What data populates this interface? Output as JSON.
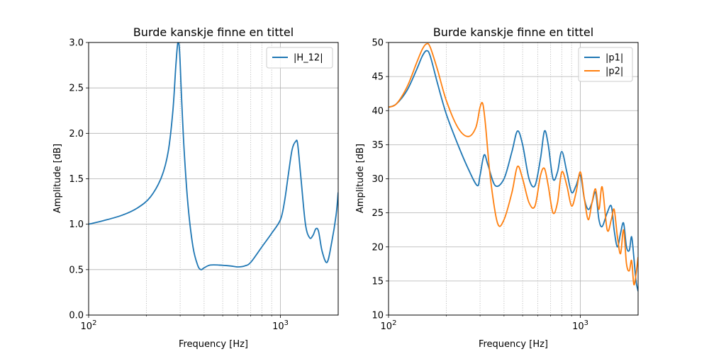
{
  "chart_data": [
    {
      "type": "line",
      "title": "Burde kanskje finne en tittel",
      "xlabel": "Frequency [Hz]",
      "ylabel": "Amplitude [dB]",
      "xscale": "log",
      "xlim": [
        100,
        2000
      ],
      "ylim": [
        0,
        3.0
      ],
      "yticks": [
        0.0,
        0.5,
        1.0,
        1.5,
        2.0,
        2.5,
        3.0
      ],
      "ytick_labels": [
        "0.0",
        "0.5",
        "1.0",
        "1.5",
        "2.0",
        "2.5",
        "3.0"
      ],
      "xticks": [
        100,
        1000
      ],
      "grid": true,
      "legend": "top-right",
      "series": [
        {
          "name": "|H_12|",
          "color": "#1f77b4",
          "x": [
            100,
            120,
            150,
            180,
            210,
            240,
            260,
            275,
            285,
            292,
            298,
            305,
            315,
            330,
            350,
            370,
            385,
            400,
            430,
            480,
            550,
            600,
            650,
            700,
            800,
            900,
            1000,
            1050,
            1100,
            1150,
            1200,
            1230,
            1280,
            1350,
            1420,
            1480,
            1530,
            1580,
            1650,
            1750,
            1850,
            1950,
            2000
          ],
          "y": [
            1.0,
            1.04,
            1.1,
            1.18,
            1.3,
            1.52,
            1.8,
            2.25,
            2.75,
            3.0,
            2.9,
            2.4,
            1.8,
            1.2,
            0.75,
            0.55,
            0.5,
            0.52,
            0.55,
            0.55,
            0.54,
            0.53,
            0.54,
            0.58,
            0.75,
            0.9,
            1.05,
            1.25,
            1.55,
            1.82,
            1.91,
            1.88,
            1.5,
            1.0,
            0.85,
            0.88,
            0.95,
            0.92,
            0.7,
            0.58,
            0.8,
            1.1,
            1.35
          ]
        }
      ]
    },
    {
      "type": "line",
      "title": "Burde kanskje finne en tittel",
      "xlabel": "Frequency [Hz]",
      "ylabel": "Amplitude [dB]",
      "xscale": "log",
      "xlim": [
        100,
        2000
      ],
      "ylim": [
        10,
        50
      ],
      "yticks": [
        10,
        15,
        20,
        25,
        30,
        35,
        40,
        45,
        50
      ],
      "ytick_labels": [
        "10",
        "15",
        "20",
        "25",
        "30",
        "35",
        "40",
        "45",
        "50"
      ],
      "xticks": [
        100,
        1000
      ],
      "grid": true,
      "legend": "top-right",
      "series": [
        {
          "name": "|p1|",
          "color": "#1f77b4",
          "x": [
            100,
            110,
            125,
            140,
            150,
            158,
            165,
            180,
            200,
            230,
            260,
            290,
            300,
            315,
            330,
            360,
            400,
            440,
            470,
            500,
            540,
            580,
            620,
            650,
            680,
            720,
            760,
            800,
            850,
            900,
            950,
            1000,
            1050,
            1100,
            1150,
            1200,
            1250,
            1300,
            1380,
            1450,
            1500,
            1560,
            1620,
            1680,
            1740,
            1800,
            1850,
            1900,
            1950,
            2000
          ],
          "y": [
            40.5,
            41.0,
            43.0,
            46.0,
            48.0,
            48.8,
            48.0,
            44.0,
            39.5,
            35.0,
            31.5,
            29.0,
            30.5,
            33.5,
            32.0,
            29.0,
            30.0,
            34.0,
            37.0,
            35.0,
            30.0,
            29.0,
            33.0,
            37.0,
            35.0,
            30.0,
            31.0,
            34.0,
            31.0,
            28.0,
            29.0,
            30.5,
            27.0,
            25.5,
            26.5,
            28.0,
            24.0,
            23.0,
            25.0,
            26.0,
            22.5,
            20.0,
            22.0,
            23.5,
            20.0,
            19.5,
            21.5,
            18.5,
            15.0,
            13.5
          ]
        },
        {
          "name": "|p2|",
          "color": "#ff7f0e",
          "x": [
            100,
            110,
            125,
            140,
            150,
            158,
            165,
            180,
            200,
            230,
            260,
            285,
            300,
            310,
            320,
            340,
            370,
            400,
            440,
            470,
            500,
            540,
            580,
            620,
            650,
            680,
            720,
            760,
            800,
            850,
            900,
            950,
            1000,
            1050,
            1100,
            1150,
            1200,
            1250,
            1300,
            1380,
            1450,
            1500,
            1560,
            1620,
            1680,
            1740,
            1800,
            1850,
            1900,
            1950,
            2000
          ],
          "y": [
            40.5,
            41.0,
            43.5,
            47.0,
            49.0,
            49.8,
            49.3,
            46.0,
            41.5,
            37.5,
            36.2,
            37.5,
            40.5,
            41.0,
            38.0,
            30.0,
            23.5,
            24.0,
            28.0,
            31.8,
            30.0,
            26.5,
            26.0,
            30.5,
            31.5,
            29.0,
            25.0,
            26.5,
            31.0,
            29.0,
            26.0,
            28.0,
            31.0,
            27.0,
            24.0,
            26.5,
            28.5,
            25.5,
            28.8,
            22.5,
            24.0,
            25.5,
            21.5,
            19.0,
            22.5,
            17.5,
            16.5,
            18.0,
            14.5,
            16.0,
            18.5
          ]
        }
      ]
    }
  ]
}
